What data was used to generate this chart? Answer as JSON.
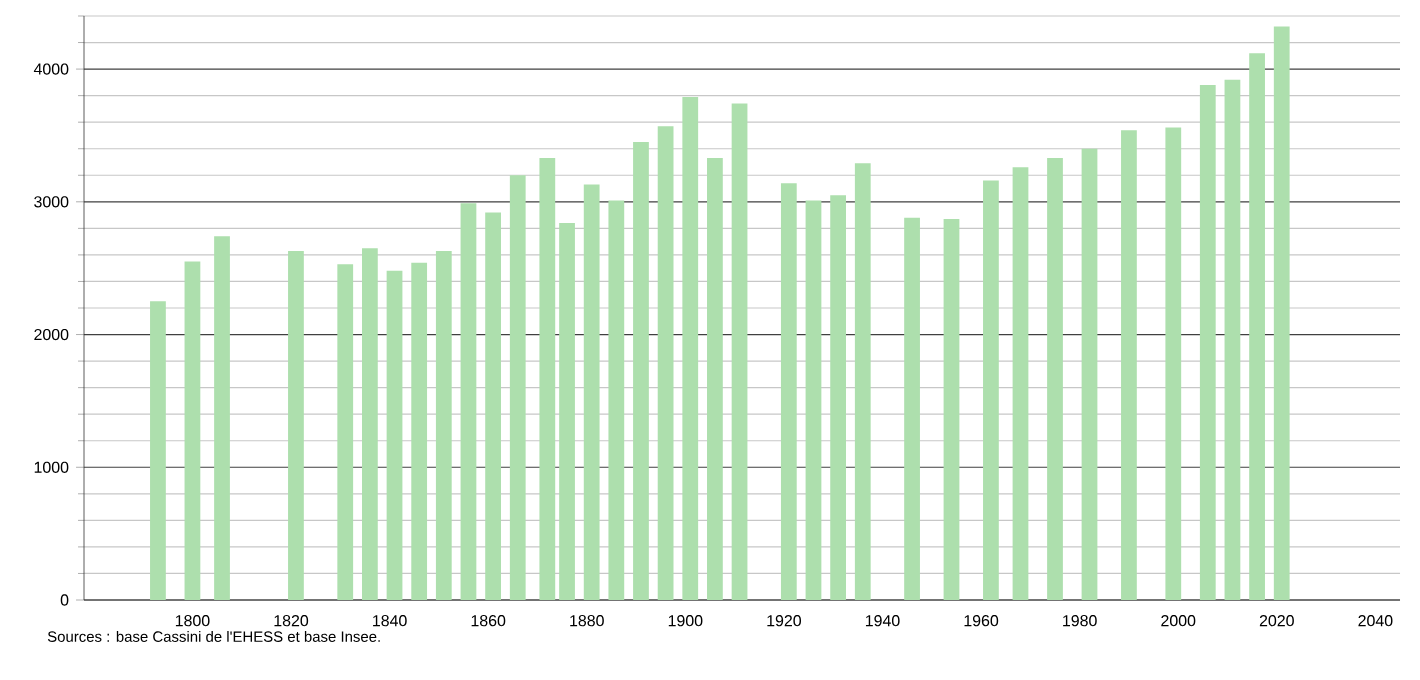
{
  "chart_data": {
    "type": "bar",
    "x": [
      1793,
      1800,
      1806,
      1821,
      1831,
      1836,
      1841,
      1846,
      1851,
      1856,
      1861,
      1866,
      1872,
      1876,
      1881,
      1886,
      1891,
      1896,
      1901,
      1906,
      1911,
      1921,
      1926,
      1931,
      1936,
      1946,
      1954,
      1962,
      1968,
      1975,
      1982,
      1990,
      1999,
      2006,
      2011,
      2016,
      2021
    ],
    "values": [
      2250,
      2550,
      2740,
      2630,
      2530,
      2650,
      2480,
      2540,
      2630,
      2990,
      2920,
      3200,
      3330,
      2840,
      3130,
      3010,
      3450,
      3570,
      3790,
      3330,
      3740,
      3140,
      3010,
      3050,
      3290,
      2880,
      2870,
      3160,
      3260,
      3330,
      3400,
      3540,
      3560,
      3880,
      3920,
      4120,
      4320
    ],
    "color": "#addfad",
    "xlim": [
      1778,
      2045
    ],
    "xticks": [
      1800,
      1820,
      1840,
      1860,
      1880,
      1900,
      1920,
      1940,
      1960,
      1980,
      2000,
      2020,
      2040
    ],
    "ylim": [
      0,
      4400
    ],
    "yticks": [
      0,
      {
        "value": 200,
        "label": null
      },
      {
        "value": 400,
        "label": null
      },
      {
        "value": 600,
        "label": null
      },
      {
        "value": 800,
        "label": null
      },
      1000,
      {
        "value": 1200,
        "label": null
      },
      {
        "value": 1400,
        "label": null
      },
      {
        "value": 1600,
        "label": null
      },
      {
        "value": 1800,
        "label": null
      },
      2000,
      {
        "value": 2200,
        "label": null
      },
      {
        "value": 2400,
        "label": null
      },
      {
        "value": 2600,
        "label": null
      },
      {
        "value": 2800,
        "label": null
      },
      3000,
      {
        "value": 3200,
        "label": null
      },
      {
        "value": 3400,
        "label": null
      },
      {
        "value": 3600,
        "label": null
      },
      {
        "value": 3800,
        "label": null
      },
      4000,
      {
        "value": 4200,
        "label": null
      },
      {
        "value": 4400,
        "label": null
      }
    ],
    "grid": "y",
    "annotations": [
      "Sources : base Cassini de l'EHESS et base Insee."
    ]
  }
}
